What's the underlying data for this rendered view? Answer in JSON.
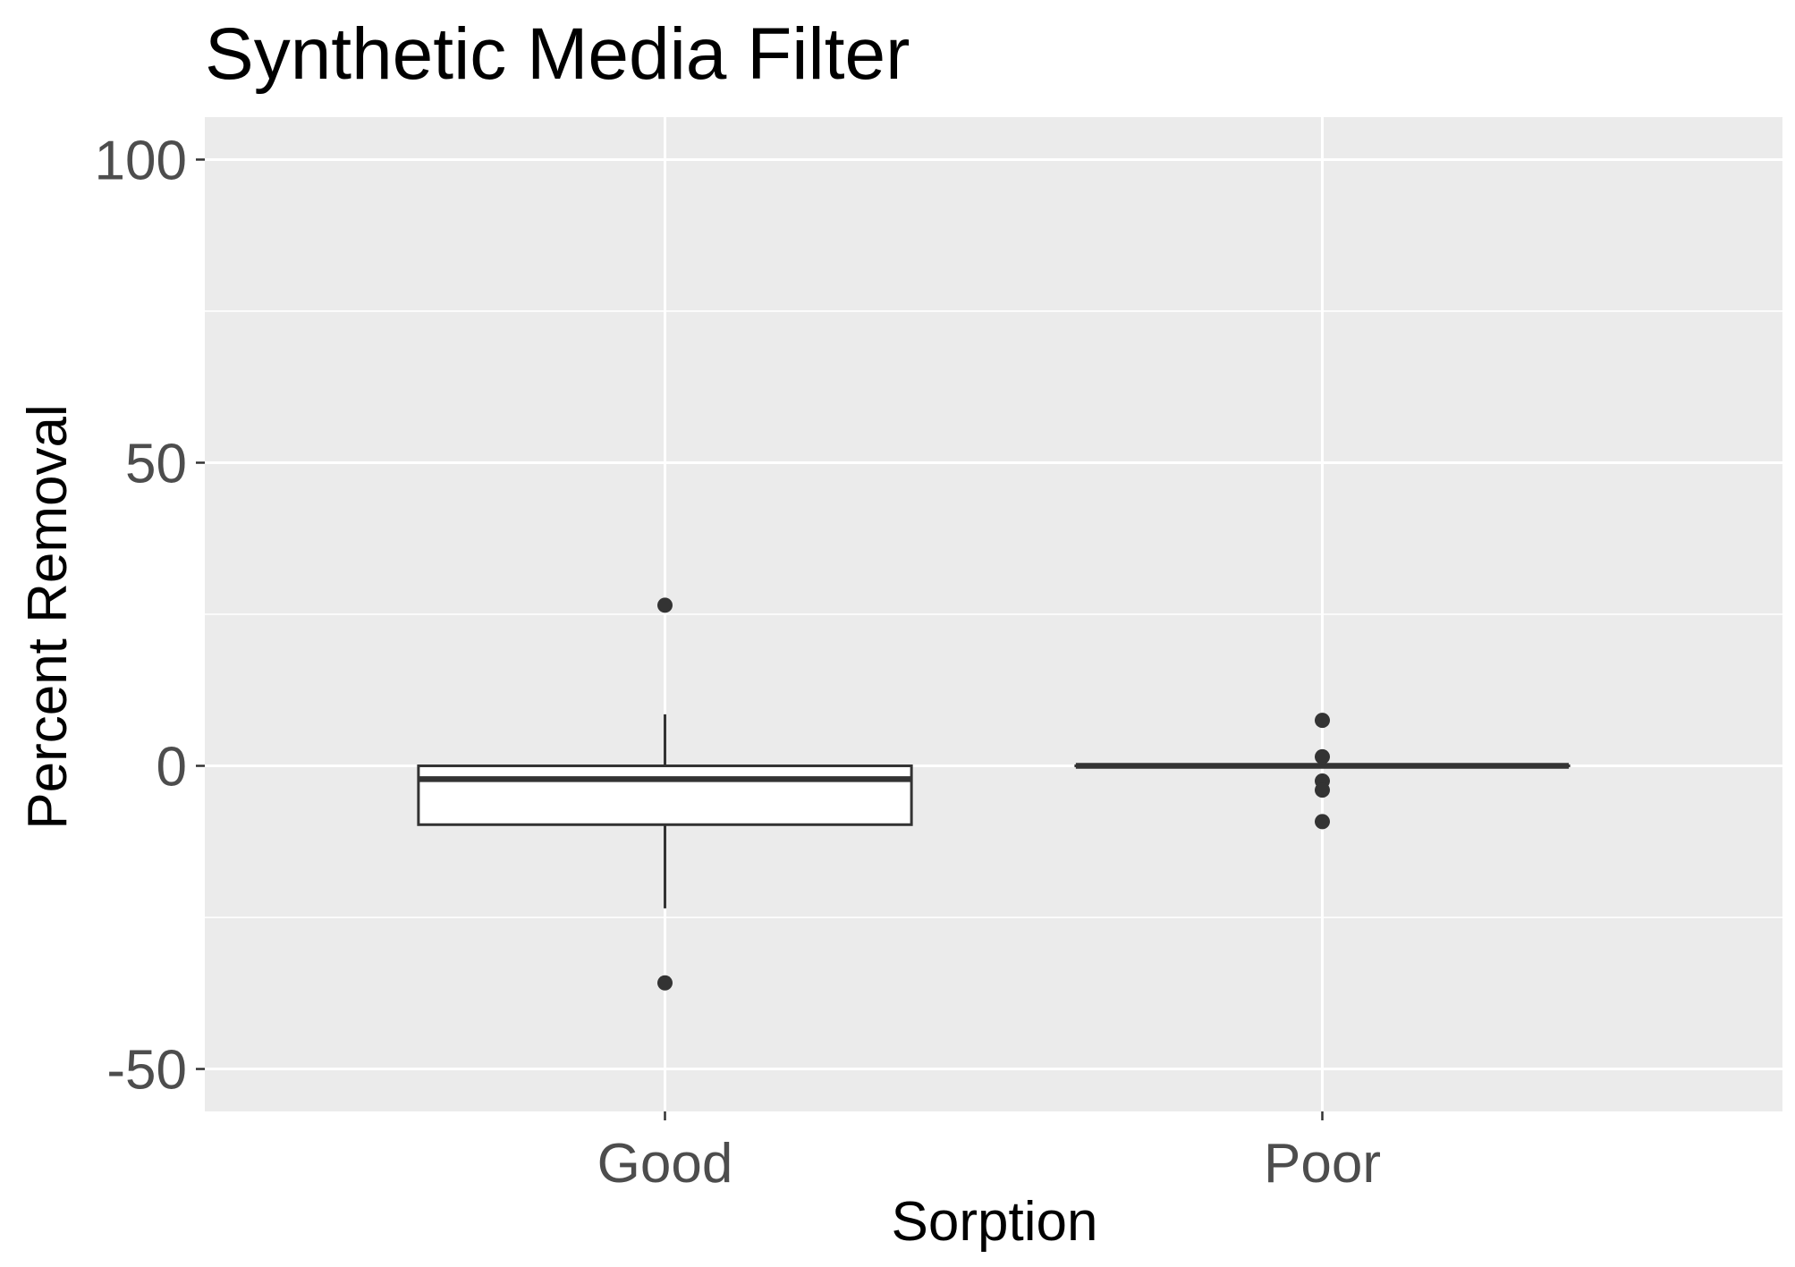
{
  "chart_data": {
    "type": "boxplot",
    "title": "Synthetic Media Filter",
    "xlabel": "Sorption",
    "ylabel": "Percent Removal",
    "ylim": [
      -57,
      107
    ],
    "yticks": [
      -50,
      0,
      50,
      100
    ],
    "categories": [
      "Good",
      "Poor"
    ],
    "boxes": [
      {
        "category": "Good",
        "q1": -9.7,
        "median": -2.2,
        "q3": 0,
        "whisker_low": -23.5,
        "whisker_high": 8.5,
        "outliers": [
          26.5,
          -35.8
        ]
      },
      {
        "category": "Poor",
        "q1": 0,
        "median": 0,
        "q3": 0,
        "whisker_low": 0,
        "whisker_high": 0,
        "outliers": [
          7.5,
          1.5,
          -2.5,
          -4.0,
          -9.2
        ]
      }
    ],
    "grid": true,
    "legend": "none",
    "colors": {
      "panel": "#ebebeb",
      "grid": "#ffffff",
      "box_fill": "#ffffff",
      "box_line": "#333333",
      "outlier": "#333333"
    }
  }
}
